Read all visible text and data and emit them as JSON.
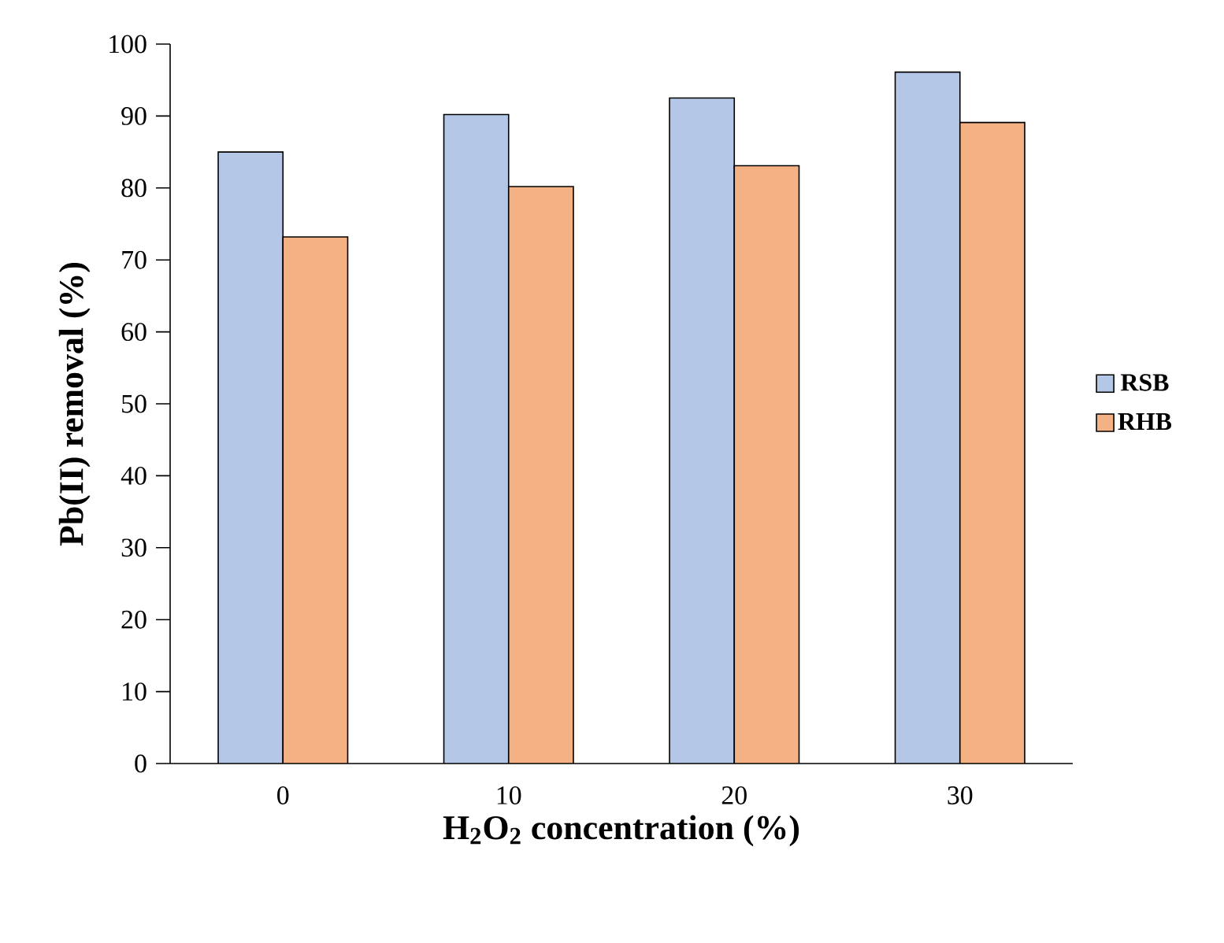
{
  "chart_data": {
    "type": "bar",
    "xlabel": "H$_{2}$O$_{2}$ concentration (%)",
    "ylabel": "Pb(II) removal (%)",
    "categories": [
      "0",
      "10",
      "20",
      "30"
    ],
    "series": [
      {
        "name": "RSB",
        "color": "#b4c7e7",
        "values": [
          85.0,
          90.2,
          92.5,
          96.1
        ]
      },
      {
        "name": "RHB",
        "color": "#f4b183",
        "values": [
          73.2,
          80.2,
          83.1,
          89.1
        ]
      }
    ],
    "ylim": [
      0,
      100
    ],
    "yticks": [
      0,
      10,
      20,
      30,
      40,
      50,
      60,
      70,
      80,
      90,
      100
    ],
    "legend": "right"
  }
}
